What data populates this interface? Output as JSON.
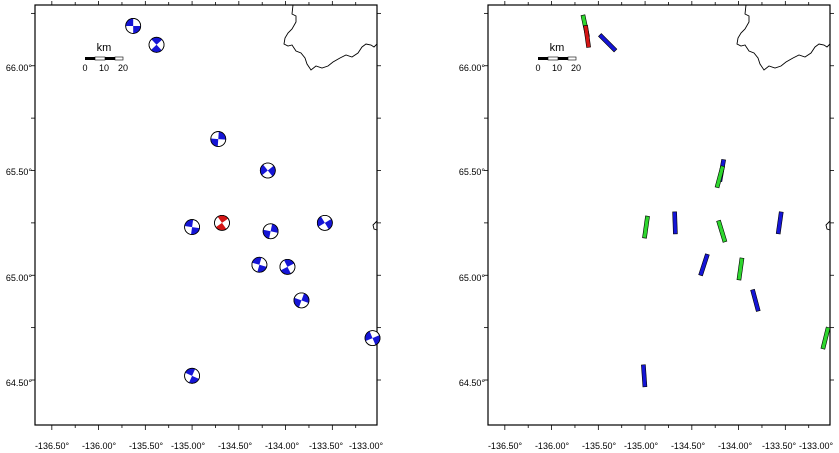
{
  "maps": [
    {
      "id": "left",
      "kind": "beachballs",
      "scale_bar": {
        "title": "km",
        "ticks": [
          "0",
          "10",
          "20"
        ]
      },
      "x_ticks": [
        "-136.50°",
        "-136.00°",
        "-135.50°",
        "-135.00°",
        "-134.50°",
        "-134.00°",
        "-133.50°",
        "-133.00°"
      ],
      "y_ticks": [
        "66.00°",
        "65.50°",
        "65.00°",
        "64.50°"
      ],
      "features": [
        {
          "lon": -135.63,
          "lat": 66.19,
          "color": "#1515d6"
        },
        {
          "lon": -135.38,
          "lat": 66.1,
          "color": "#1515d6"
        },
        {
          "lon": -134.72,
          "lat": 65.65,
          "color": "#1515d6"
        },
        {
          "lon": -134.19,
          "lat": 65.5,
          "color": "#1515d6"
        },
        {
          "lon": -135.0,
          "lat": 65.23,
          "color": "#1515d6"
        },
        {
          "lon": -134.68,
          "lat": 65.25,
          "color": "#d41515"
        },
        {
          "lon": -134.16,
          "lat": 65.21,
          "color": "#1515d6"
        },
        {
          "lon": -133.58,
          "lat": 65.25,
          "color": "#1515d6"
        },
        {
          "lon": -134.28,
          "lat": 65.05,
          "color": "#1515d6"
        },
        {
          "lon": -133.98,
          "lat": 65.04,
          "color": "#1515d6"
        },
        {
          "lon": -133.83,
          "lat": 64.88,
          "color": "#1515d6"
        },
        {
          "lon": -133.07,
          "lat": 64.7,
          "color": "#1515d6"
        },
        {
          "lon": -135.0,
          "lat": 64.52,
          "color": "#1515d6"
        }
      ]
    },
    {
      "id": "right",
      "kind": "bars",
      "scale_bar": {
        "title": "km",
        "ticks": [
          "0",
          "10",
          "20"
        ]
      },
      "x_ticks": [
        "-136.50°",
        "-136.00°",
        "-135.50°",
        "-135.00°",
        "-134.50°",
        "-134.00°",
        "-133.50°",
        "-133.00°"
      ],
      "y_ticks": [
        "66.00°",
        "65.50°",
        "65.00°",
        "64.50°"
      ],
      "features": [
        {
          "lon": -135.64,
          "lat": 66.19,
          "azimuth": 168,
          "color": "#2ed62e"
        },
        {
          "lon": -135.62,
          "lat": 66.14,
          "azimuth": 172,
          "color": "#d41515"
        },
        {
          "lon": -135.4,
          "lat": 66.11,
          "azimuth": 135,
          "color": "#1515d6"
        },
        {
          "lon": -134.18,
          "lat": 65.5,
          "azimuth": 10,
          "color": "#1515d6"
        },
        {
          "lon": -134.2,
          "lat": 65.47,
          "azimuth": 15,
          "color": "#2ed62e"
        },
        {
          "lon": -134.99,
          "lat": 65.23,
          "azimuth": 8,
          "color": "#2ed62e"
        },
        {
          "lon": -134.68,
          "lat": 65.25,
          "azimuth": 178,
          "color": "#1515d6"
        },
        {
          "lon": -134.18,
          "lat": 65.21,
          "azimuth": 163,
          "color": "#2ed62e"
        },
        {
          "lon": -133.56,
          "lat": 65.25,
          "azimuth": 8,
          "color": "#1515d6"
        },
        {
          "lon": -134.37,
          "lat": 65.05,
          "azimuth": 18,
          "color": "#1515d6"
        },
        {
          "lon": -133.98,
          "lat": 65.03,
          "azimuth": 8,
          "color": "#2ed62e"
        },
        {
          "lon": -133.82,
          "lat": 64.88,
          "azimuth": 165,
          "color": "#1515d6"
        },
        {
          "lon": -133.07,
          "lat": 64.7,
          "azimuth": 14,
          "color": "#2ed62e"
        },
        {
          "lon": -135.01,
          "lat": 64.52,
          "azimuth": 176,
          "color": "#1515d6"
        }
      ]
    }
  ]
}
